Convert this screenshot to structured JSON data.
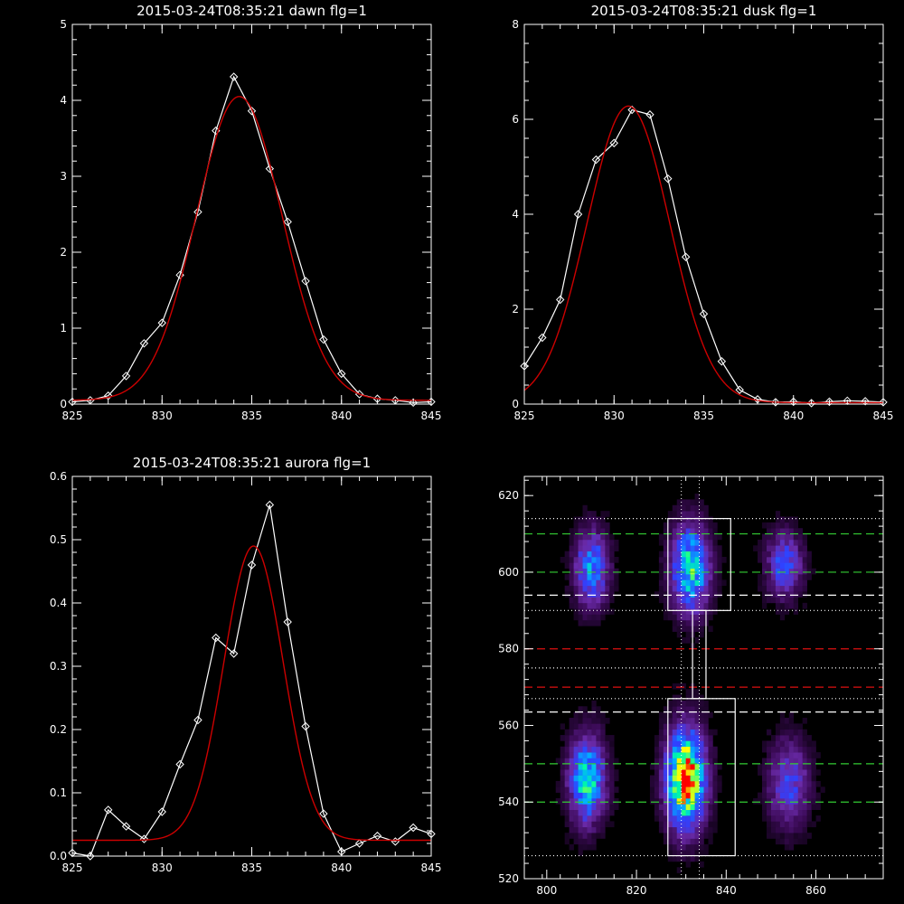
{
  "chart_data": [
    {
      "type": "line",
      "title": "2015-03-24T08:35:21 dawn flg=1",
      "xlim": [
        825,
        845
      ],
      "ylim": [
        0,
        5
      ],
      "xticks": [
        825,
        830,
        835,
        840,
        845
      ],
      "yticks": [
        0,
        1,
        2,
        3,
        4,
        5
      ],
      "series": [
        {
          "kind": "data",
          "color": "#ffffff",
          "x": [
            825,
            826,
            827,
            828,
            829,
            830,
            831,
            832,
            833,
            834,
            835,
            836,
            837,
            838,
            839,
            840,
            841,
            842,
            843,
            844,
            845
          ],
          "y": [
            0.03,
            0.05,
            0.11,
            0.37,
            0.8,
            1.07,
            1.7,
            2.53,
            3.6,
            4.31,
            3.86,
            3.1,
            2.4,
            1.62,
            0.85,
            0.4,
            0.13,
            0.07,
            0.05,
            0.02,
            0.03
          ]
        },
        {
          "kind": "fit",
          "color": "#cc0000",
          "model": "gaussian",
          "amplitude": 4.0,
          "center": 834.3,
          "sigma": 2.4,
          "offset": 0.05
        }
      ]
    },
    {
      "type": "line",
      "title": "2015-03-24T08:35:21 dusk flg=1",
      "xlim": [
        825,
        845
      ],
      "ylim": [
        0,
        8
      ],
      "xticks": [
        825,
        830,
        835,
        840,
        845
      ],
      "yticks": [
        0,
        2,
        4,
        6,
        8
      ],
      "series": [
        {
          "kind": "data",
          "color": "#ffffff",
          "x": [
            825,
            826,
            827,
            828,
            829,
            830,
            831,
            832,
            833,
            834,
            835,
            836,
            837,
            838,
            839,
            840,
            841,
            842,
            843,
            844,
            845
          ],
          "y": [
            0.8,
            1.4,
            2.2,
            4.0,
            5.15,
            5.5,
            6.2,
            6.1,
            4.75,
            3.1,
            1.9,
            0.9,
            0.3,
            0.1,
            0.04,
            0.05,
            0.02,
            0.05,
            0.07,
            0.06,
            0.04
          ]
        },
        {
          "kind": "fit",
          "color": "#cc0000",
          "model": "gaussian",
          "amplitude": 6.25,
          "center": 830.8,
          "sigma": 2.3,
          "offset": 0.03
        }
      ]
    },
    {
      "type": "line",
      "title": "2015-03-24T08:35:21 aurora flg=1",
      "xlim": [
        825,
        845
      ],
      "ylim": [
        0,
        0.6
      ],
      "xticks": [
        825,
        830,
        835,
        840,
        845
      ],
      "yticks": [
        0.0,
        0.1,
        0.2,
        0.3,
        0.4,
        0.5,
        0.6
      ],
      "ytickLabels": [
        "0.0",
        "0.1",
        "0.2",
        "0.3",
        "0.4",
        "0.5",
        "0.6"
      ],
      "series": [
        {
          "kind": "data",
          "color": "#ffffff",
          "x": [
            825,
            826,
            827,
            828,
            829,
            830,
            831,
            832,
            833,
            834,
            835,
            836,
            837,
            838,
            839,
            840,
            841,
            842,
            843,
            844,
            845
          ],
          "y": [
            0.005,
            0.0,
            0.073,
            0.047,
            0.027,
            0.07,
            0.145,
            0.215,
            0.345,
            0.32,
            0.46,
            0.555,
            0.37,
            0.205,
            0.067,
            0.007,
            0.02,
            0.032,
            0.023,
            0.045,
            0.035
          ]
        },
        {
          "kind": "fit",
          "color": "#cc0000",
          "model": "gaussian",
          "amplitude": 0.465,
          "center": 835.1,
          "sigma": 1.65,
          "offset": 0.025
        }
      ]
    },
    {
      "type": "heatmap",
      "title": "",
      "xlim": [
        795,
        875
      ],
      "ylim": [
        520,
        625
      ],
      "xticks": [
        800,
        820,
        840,
        860
      ],
      "yticks": [
        520,
        540,
        560,
        580,
        600,
        620
      ],
      "colorscale": [
        "#000000",
        "#3a0a55",
        "#6a2aa8",
        "#3040ff",
        "#00b0ff",
        "#00ffa0",
        "#ffff00",
        "#ff0000"
      ],
      "blobs": [
        {
          "x": 810,
          "y": 601,
          "sx": 2.6,
          "sy": 7,
          "amp": 0.52
        },
        {
          "x": 832,
          "y": 601,
          "sx": 3.0,
          "sy": 8,
          "amp": 0.66
        },
        {
          "x": 853,
          "y": 602,
          "sx": 2.8,
          "sy": 6,
          "amp": 0.42
        },
        {
          "x": 809,
          "y": 546,
          "sx": 2.8,
          "sy": 8,
          "amp": 0.65
        },
        {
          "x": 831,
          "y": 546,
          "sx": 3.0,
          "sy": 9,
          "amp": 1.0
        },
        {
          "x": 854,
          "y": 545,
          "sx": 3.2,
          "sy": 8,
          "amp": 0.38
        }
      ],
      "vlines_dotted": [
        830,
        834
      ],
      "hlines_dotted": [
        614,
        590,
        575,
        567,
        526
      ],
      "hlines_green_dashed": [
        610,
        600,
        550,
        540
      ],
      "hlines_white_dashed": [
        594,
        563.5
      ],
      "hlines_red_dashed": [
        580,
        570
      ],
      "box_upper": {
        "x": [
          827,
          841
        ],
        "y": [
          590,
          614
        ]
      },
      "box_lower": {
        "x": [
          827,
          842
        ],
        "y": [
          526,
          567
        ]
      },
      "connector": {
        "x": [
          832.5,
          835.5
        ],
        "y": [
          567,
          590
        ]
      }
    }
  ]
}
